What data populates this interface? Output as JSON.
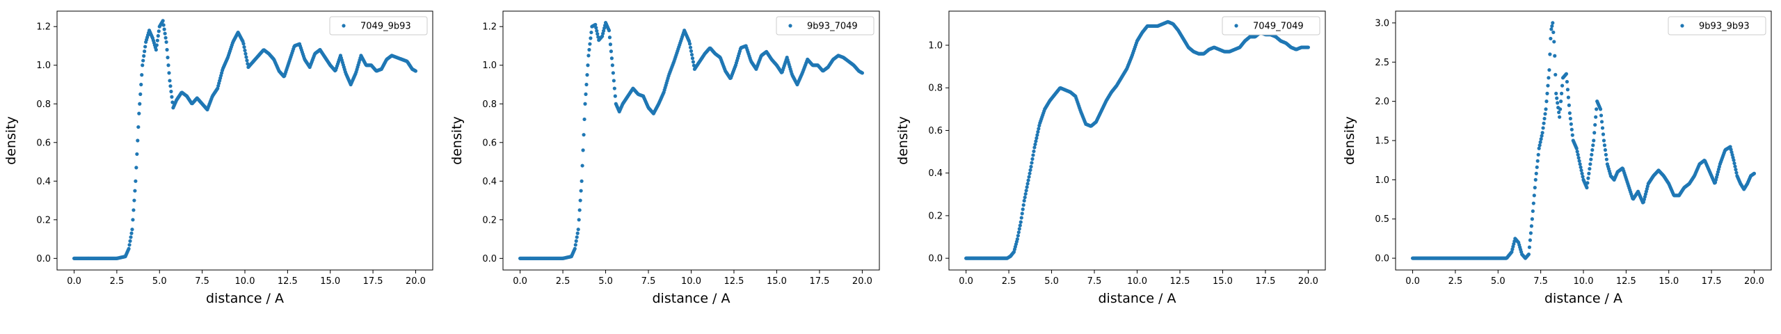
{
  "chart_data": [
    {
      "type": "scatter",
      "xlabel": "distance / A",
      "ylabel": "density",
      "xlim": [
        -1.0,
        21.0
      ],
      "ylim": [
        -0.06,
        1.28
      ],
      "xticks": [
        0.0,
        2.5,
        5.0,
        7.5,
        10.0,
        12.5,
        15.0,
        17.5,
        20.0
      ],
      "xtick_labels": [
        "0.0",
        "2.5",
        "5.0",
        "7.5",
        "10.0",
        "12.5",
        "15.0",
        "17.5",
        "20.0"
      ],
      "yticks": [
        0.0,
        0.2,
        0.4,
        0.6,
        0.8,
        1.0,
        1.2
      ],
      "ytick_labels": [
        "0.0",
        "0.2",
        "0.4",
        "0.6",
        "0.8",
        "1.0",
        "1.2"
      ],
      "legend_position": "upper right",
      "series": [
        {
          "name": "7049_9b93",
          "color": "#1f77b4",
          "x": [
            0,
            0.5,
            1.0,
            1.5,
            2.0,
            2.5,
            3.0,
            3.2,
            3.4,
            3.6,
            3.8,
            4.0,
            4.2,
            4.4,
            4.6,
            4.8,
            5.0,
            5.2,
            5.4,
            5.6,
            5.8,
            6.0,
            6.3,
            6.6,
            6.9,
            7.2,
            7.5,
            7.8,
            8.1,
            8.4,
            8.7,
            9.0,
            9.3,
            9.6,
            9.9,
            10.2,
            10.5,
            10.8,
            11.1,
            11.4,
            11.7,
            12.0,
            12.3,
            12.6,
            12.9,
            13.2,
            13.5,
            13.8,
            14.1,
            14.4,
            14.7,
            15.0,
            15.3,
            15.6,
            15.9,
            16.2,
            16.5,
            16.8,
            17.1,
            17.4,
            17.7,
            18.0,
            18.3,
            18.6,
            18.9,
            19.2,
            19.5,
            19.8,
            20.0
          ],
          "y": [
            0,
            0,
            0,
            0,
            0,
            0,
            0.01,
            0.05,
            0.15,
            0.4,
            0.75,
            1.0,
            1.12,
            1.18,
            1.14,
            1.08,
            1.2,
            1.23,
            1.12,
            0.92,
            0.78,
            0.82,
            0.86,
            0.84,
            0.8,
            0.83,
            0.8,
            0.77,
            0.84,
            0.88,
            0.98,
            1.04,
            1.12,
            1.17,
            1.12,
            0.99,
            1.02,
            1.05,
            1.08,
            1.06,
            1.03,
            0.97,
            0.94,
            1.02,
            1.1,
            1.11,
            1.03,
            0.99,
            1.06,
            1.08,
            1.04,
            1.0,
            0.97,
            1.05,
            0.96,
            0.9,
            0.96,
            1.05,
            1.0,
            1.0,
            0.97,
            0.98,
            1.03,
            1.05,
            1.04,
            1.03,
            1.02,
            0.98,
            0.97
          ]
        }
      ]
    },
    {
      "type": "scatter",
      "xlabel": "distance / A",
      "ylabel": "density",
      "xlim": [
        -1.0,
        21.0
      ],
      "ylim": [
        -0.06,
        1.28
      ],
      "xticks": [
        0.0,
        2.5,
        5.0,
        7.5,
        10.0,
        12.5,
        15.0,
        17.5,
        20.0
      ],
      "xtick_labels": [
        "0.0",
        "2.5",
        "5.0",
        "7.5",
        "10.0",
        "12.5",
        "15.0",
        "17.5",
        "20.0"
      ],
      "yticks": [
        0.0,
        0.2,
        0.4,
        0.6,
        0.8,
        1.0,
        1.2
      ],
      "ytick_labels": [
        "0.0",
        "0.2",
        "0.4",
        "0.6",
        "0.8",
        "1.0",
        "1.2"
      ],
      "legend_position": "upper right",
      "series": [
        {
          "name": "9b93_7049",
          "color": "#1f77b4",
          "x": [
            0,
            0.5,
            1.0,
            1.5,
            2.0,
            2.5,
            3.0,
            3.2,
            3.4,
            3.6,
            3.8,
            4.0,
            4.2,
            4.4,
            4.6,
            4.8,
            5.0,
            5.2,
            5.4,
            5.6,
            5.8,
            6.0,
            6.3,
            6.6,
            6.9,
            7.2,
            7.5,
            7.8,
            8.1,
            8.4,
            8.7,
            9.0,
            9.3,
            9.6,
            9.9,
            10.2,
            10.5,
            10.8,
            11.1,
            11.4,
            11.7,
            12.0,
            12.3,
            12.6,
            12.9,
            13.2,
            13.5,
            13.8,
            14.1,
            14.4,
            14.7,
            15.0,
            15.3,
            15.6,
            15.9,
            16.2,
            16.5,
            16.8,
            17.1,
            17.4,
            17.7,
            18.0,
            18.3,
            18.6,
            18.9,
            19.2,
            19.5,
            19.8,
            20.0
          ],
          "y": [
            0,
            0,
            0,
            0,
            0,
            0,
            0.01,
            0.05,
            0.15,
            0.4,
            0.8,
            1.05,
            1.2,
            1.21,
            1.13,
            1.15,
            1.22,
            1.18,
            1.0,
            0.8,
            0.76,
            0.8,
            0.84,
            0.88,
            0.85,
            0.84,
            0.78,
            0.75,
            0.8,
            0.86,
            0.95,
            1.02,
            1.1,
            1.18,
            1.12,
            0.98,
            1.02,
            1.06,
            1.09,
            1.06,
            1.04,
            0.97,
            0.93,
            1.0,
            1.09,
            1.1,
            1.02,
            0.98,
            1.05,
            1.07,
            1.03,
            1.0,
            0.96,
            1.04,
            0.95,
            0.9,
            0.96,
            1.03,
            1.0,
            1.0,
            0.97,
            0.99,
            1.03,
            1.05,
            1.04,
            1.02,
            1.0,
            0.97,
            0.96
          ]
        }
      ]
    },
    {
      "type": "scatter",
      "xlabel": "distance / A",
      "ylabel": "density",
      "xlim": [
        -1.0,
        21.0
      ],
      "ylim": [
        -0.055,
        1.16
      ],
      "xticks": [
        0.0,
        2.5,
        5.0,
        7.5,
        10.0,
        12.5,
        15.0,
        17.5,
        20.0
      ],
      "xtick_labels": [
        "0.0",
        "2.5",
        "5.0",
        "7.5",
        "10.0",
        "12.5",
        "15.0",
        "17.5",
        "20.0"
      ],
      "yticks": [
        0.0,
        0.2,
        0.4,
        0.6,
        0.8,
        1.0
      ],
      "ytick_labels": [
        "0.0",
        "0.2",
        "0.4",
        "0.6",
        "0.8",
        "1.0"
      ],
      "legend_position": "upper right",
      "series": [
        {
          "name": "7049_7049",
          "color": "#1f77b4",
          "x": [
            0,
            0.5,
            1.0,
            1.5,
            2.0,
            2.4,
            2.6,
            2.8,
            3.0,
            3.2,
            3.4,
            3.6,
            3.8,
            4.0,
            4.3,
            4.6,
            4.9,
            5.2,
            5.5,
            5.8,
            6.1,
            6.4,
            6.7,
            7.0,
            7.3,
            7.6,
            7.9,
            8.2,
            8.5,
            8.8,
            9.1,
            9.4,
            9.7,
            10.0,
            10.3,
            10.6,
            10.9,
            11.2,
            11.5,
            11.8,
            12.1,
            12.4,
            12.7,
            13.0,
            13.3,
            13.6,
            13.9,
            14.2,
            14.5,
            14.8,
            15.1,
            15.4,
            15.7,
            16.0,
            16.3,
            16.6,
            16.9,
            17.2,
            17.5,
            17.8,
            18.1,
            18.4,
            18.7,
            19.0,
            19.3,
            19.6,
            20.0
          ],
          "y": [
            0,
            0,
            0,
            0,
            0,
            0.0,
            0.01,
            0.03,
            0.09,
            0.17,
            0.27,
            0.35,
            0.43,
            0.52,
            0.63,
            0.7,
            0.74,
            0.77,
            0.8,
            0.79,
            0.78,
            0.76,
            0.69,
            0.63,
            0.62,
            0.64,
            0.69,
            0.74,
            0.78,
            0.81,
            0.85,
            0.89,
            0.95,
            1.02,
            1.06,
            1.09,
            1.09,
            1.09,
            1.1,
            1.11,
            1.1,
            1.07,
            1.03,
            0.99,
            0.97,
            0.96,
            0.96,
            0.98,
            0.99,
            0.98,
            0.97,
            0.97,
            0.98,
            0.99,
            1.02,
            1.04,
            1.04,
            1.06,
            1.05,
            1.05,
            1.04,
            1.02,
            1.01,
            0.99,
            0.98,
            0.99,
            0.99
          ]
        }
      ]
    },
    {
      "type": "scatter",
      "xlabel": "distance / A",
      "ylabel": "density",
      "xlim": [
        -1.0,
        21.0
      ],
      "ylim": [
        -0.15,
        3.15
      ],
      "xticks": [
        0.0,
        2.5,
        5.0,
        7.5,
        10.0,
        12.5,
        15.0,
        17.5,
        20.0
      ],
      "xtick_labels": [
        "0.0",
        "2.5",
        "5.0",
        "7.5",
        "10.0",
        "12.5",
        "15.0",
        "17.5",
        "20.0"
      ],
      "yticks": [
        0.0,
        0.5,
        1.0,
        1.5,
        2.0,
        2.5,
        3.0
      ],
      "ytick_labels": [
        "0.0",
        "0.5",
        "1.0",
        "1.5",
        "2.0",
        "2.5",
        "3.0"
      ],
      "legend_position": "upper right",
      "series": [
        {
          "name": "9b93_9b93",
          "color": "#1f77b4",
          "x": [
            0,
            0.5,
            1.0,
            1.5,
            2.0,
            2.5,
            3.0,
            3.5,
            4.0,
            4.5,
            5.0,
            5.5,
            5.8,
            6.0,
            6.2,
            6.4,
            6.6,
            6.8,
            7.0,
            7.2,
            7.4,
            7.6,
            7.8,
            8.0,
            8.1,
            8.2,
            8.3,
            8.4,
            8.6,
            8.8,
            9.0,
            9.2,
            9.4,
            9.6,
            9.8,
            10.0,
            10.2,
            10.4,
            10.6,
            10.8,
            11.0,
            11.2,
            11.4,
            11.6,
            11.8,
            12.0,
            12.3,
            12.6,
            12.9,
            13.2,
            13.5,
            13.8,
            14.1,
            14.4,
            14.7,
            15.0,
            15.3,
            15.6,
            15.9,
            16.2,
            16.5,
            16.8,
            17.1,
            17.4,
            17.7,
            18.0,
            18.3,
            18.6,
            18.8,
            19.0,
            19.2,
            19.4,
            19.6,
            19.8,
            20.0
          ],
          "y": [
            0,
            0,
            0,
            0,
            0,
            0,
            0,
            0,
            0,
            0,
            0,
            0.0,
            0.08,
            0.25,
            0.2,
            0.05,
            0.0,
            0.05,
            0.5,
            1.0,
            1.4,
            1.6,
            1.9,
            2.4,
            2.9,
            3.0,
            2.7,
            2.1,
            1.8,
            2.3,
            2.35,
            1.85,
            1.5,
            1.4,
            1.2,
            1.0,
            0.9,
            1.2,
            1.5,
            2.0,
            1.9,
            1.5,
            1.2,
            1.05,
            1.0,
            1.1,
            1.15,
            0.95,
            0.75,
            0.85,
            0.7,
            0.95,
            1.05,
            1.12,
            1.05,
            0.95,
            0.8,
            0.8,
            0.9,
            0.95,
            1.05,
            1.2,
            1.25,
            1.1,
            0.95,
            1.2,
            1.38,
            1.42,
            1.25,
            1.05,
            0.95,
            0.88,
            0.95,
            1.05,
            1.08
          ]
        }
      ]
    }
  ]
}
